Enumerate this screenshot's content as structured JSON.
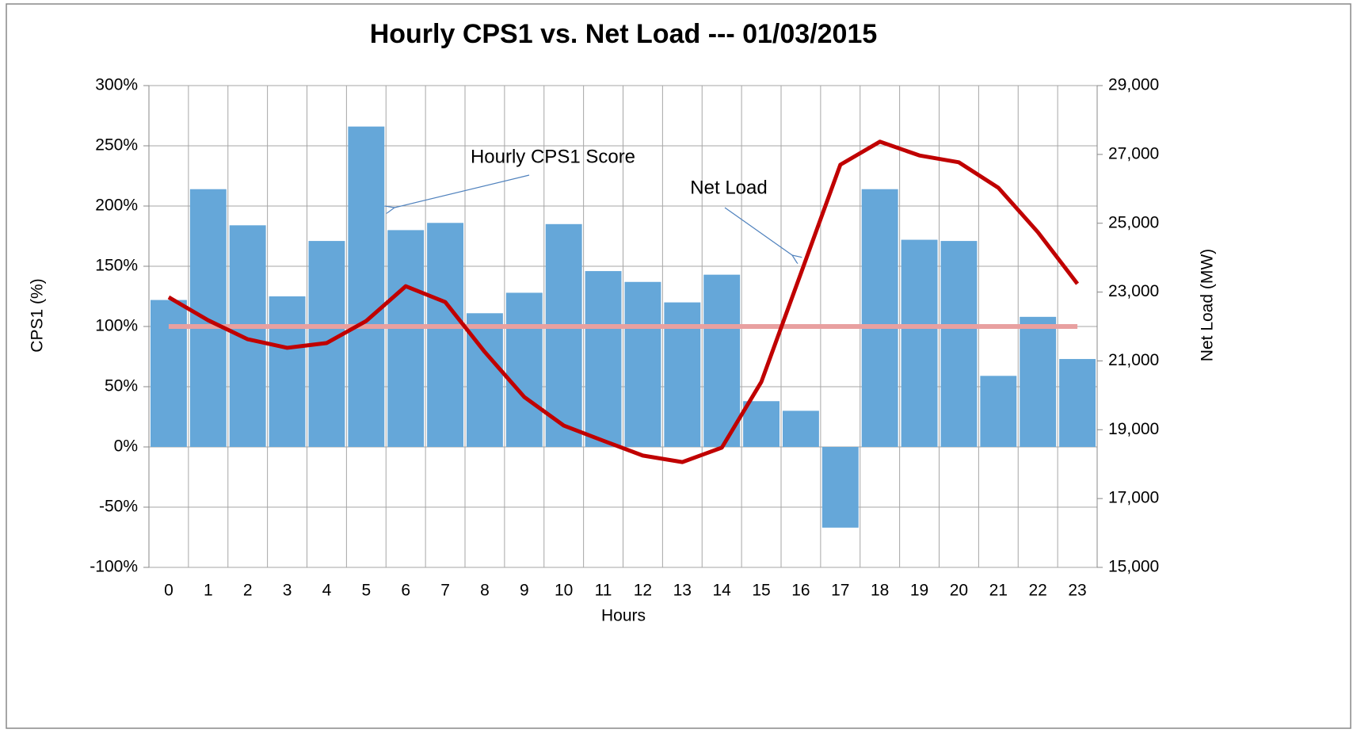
{
  "chart_data": {
    "type": "bar-line",
    "title": "Hourly CPS1 vs. Net Load --- 01/03/2015",
    "x_label": "Hours",
    "y_label": "CPS1 (%)",
    "y2_label": "Net Load (MW)",
    "annotations": [
      "Hourly CPS1 Score",
      "Net Load"
    ],
    "categories": [
      "0",
      "1",
      "2",
      "3",
      "4",
      "5",
      "6",
      "7",
      "8",
      "9",
      "10",
      "11",
      "12",
      "13",
      "14",
      "15",
      "16",
      "17",
      "18",
      "19",
      "20",
      "21",
      "22",
      "23"
    ],
    "series": [
      {
        "kind": "bar",
        "color": "#65a7d9",
        "values": [
          122,
          214,
          184,
          125,
          171,
          266,
          180,
          186,
          111,
          128,
          185,
          146,
          137,
          120,
          143,
          38,
          30,
          -67,
          214,
          172,
          171,
          59,
          108,
          73
        ]
      },
      {
        "kind": "line",
        "color": "#e8a0a0",
        "values": [
          100,
          100,
          100,
          100,
          100,
          100,
          100,
          100,
          100,
          100,
          100,
          100,
          100,
          100,
          100,
          100,
          100,
          100,
          100,
          100,
          100,
          100,
          100,
          100
        ]
      },
      {
        "kind": "line",
        "color": "#c00000",
        "axis": "y2",
        "values": [
          22850,
          22180,
          21630,
          21380,
          21520,
          22160,
          23170,
          22710,
          21260,
          19950,
          19120,
          18680,
          18250,
          18060,
          18480,
          20390,
          23540,
          26700,
          27370,
          26970,
          26770,
          26030,
          24740,
          23240
        ]
      }
    ],
    "ylim": [
      -100,
      300
    ],
    "yticks": [
      {
        "value": -100,
        "label": "-100%"
      },
      {
        "value": -50,
        "label": "-50%"
      },
      {
        "value": 0,
        "label": "0%"
      },
      {
        "value": 50,
        "label": "50%"
      },
      {
        "value": 100,
        "label": "100%"
      },
      {
        "value": 150,
        "label": "150%"
      },
      {
        "value": 200,
        "label": "200%"
      },
      {
        "value": 250,
        "label": "250%"
      },
      {
        "value": 300,
        "label": "300%"
      }
    ],
    "y2lim": [
      15000,
      29000
    ],
    "y2ticks": [
      {
        "value": 15000,
        "label": "15,000"
      },
      {
        "value": 17000,
        "label": "17,000"
      },
      {
        "value": 19000,
        "label": "19,000"
      },
      {
        "value": 21000,
        "label": "21,000"
      },
      {
        "value": 23000,
        "label": "23,000"
      },
      {
        "value": 25000,
        "label": "25,000"
      },
      {
        "value": 27000,
        "label": "27,000"
      },
      {
        "value": 29000,
        "label": "29,000"
      }
    ],
    "grid": true
  }
}
